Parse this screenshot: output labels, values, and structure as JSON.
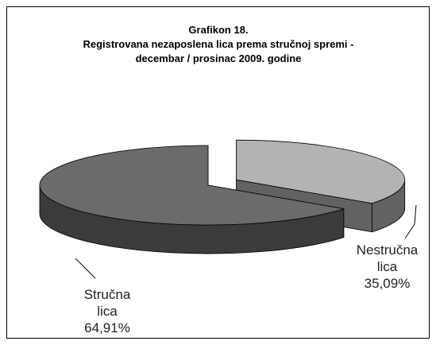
{
  "chart_data": {
    "type": "pie3d",
    "title": [
      "Grafikon 18.",
      "Registrovana nezaposlena lica prema stručnoj spremi  -",
      "decembar /  prosinac 2009. godine"
    ],
    "categories": [
      "Nestručna lica",
      "Stručna lica"
    ],
    "values": [
      35.09,
      64.91
    ],
    "value_labels": [
      "35,09%",
      "64,91%"
    ],
    "colors": [
      "#b3b3b3",
      "#6b6b6b"
    ],
    "explode": [
      true,
      false
    ]
  }
}
